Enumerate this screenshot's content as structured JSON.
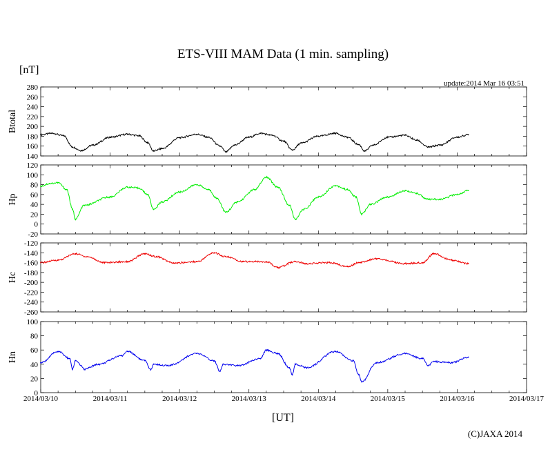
{
  "title": "ETS-VIII MAM Data (1 min. sampling)",
  "unit_label": "[nT]",
  "update_text": "update:2014 Mar 16 03:51",
  "xlabel": "[UT]",
  "copyright": "(C)JAXA 2014",
  "x_ticks": [
    "2014/03/10",
    "2014/03/11",
    "2014/03/12",
    "2014/03/13",
    "2014/03/14",
    "2014/03/15",
    "2014/03/16",
    "2014/03/17"
  ],
  "chart_data": [
    {
      "type": "line",
      "ylabel": "Btotal",
      "ylim": [
        140,
        280
      ],
      "y_ticks": [
        140,
        160,
        180,
        200,
        220,
        240,
        260,
        280
      ],
      "xlim": [
        "2014-03-10T00:00",
        "2014-03-17T00:00"
      ],
      "color": "#000000",
      "series": [
        {
          "x": [
            "2014-03-10T00:00",
            "2014-03-10T04:00",
            "2014-03-10T08:00",
            "2014-03-10T11:00",
            "2014-03-10T14:00",
            "2014-03-10T18:00",
            "2014-03-11T00:00",
            "2014-03-11T06:00",
            "2014-03-11T10:00",
            "2014-03-11T13:00",
            "2014-03-11T15:00",
            "2014-03-11T18:00",
            "2014-03-12T00:00",
            "2014-03-12T06:00",
            "2014-03-12T10:00",
            "2014-03-12T14:00",
            "2014-03-12T16:00",
            "2014-03-12T19:00",
            "2014-03-13T00:00",
            "2014-03-13T04:00",
            "2014-03-13T08:00",
            "2014-03-13T12:00",
            "2014-03-13T15:00",
            "2014-03-13T18:00",
            "2014-03-14T00:00",
            "2014-03-14T06:00",
            "2014-03-14T10:00",
            "2014-03-14T14:00",
            "2014-03-14T16:00",
            "2014-03-14T19:00",
            "2014-03-15T00:00",
            "2014-03-15T06:00",
            "2014-03-15T10:00",
            "2014-03-15T14:00",
            "2014-03-15T18:00",
            "2014-03-16T00:00",
            "2014-03-16T03:51"
          ],
          "values": [
            183,
            186,
            181,
            158,
            151,
            162,
            178,
            184,
            181,
            167,
            150,
            155,
            177,
            184,
            178,
            160,
            148,
            162,
            178,
            186,
            182,
            170,
            152,
            166,
            180,
            186,
            178,
            163,
            150,
            162,
            178,
            182,
            172,
            158,
            162,
            178,
            183
          ]
        }
      ]
    },
    {
      "type": "line",
      "ylabel": "Hp",
      "ylim": [
        -20,
        120
      ],
      "y_ticks": [
        -20,
        0,
        20,
        40,
        60,
        80,
        100,
        120
      ],
      "xlim": [
        "2014-03-10T00:00",
        "2014-03-17T00:00"
      ],
      "color": "#00ee00",
      "series": [
        {
          "x": [
            "2014-03-10T00:00",
            "2014-03-10T03:00",
            "2014-03-10T06:00",
            "2014-03-10T09:00",
            "2014-03-10T11:00",
            "2014-03-10T12:00",
            "2014-03-10T15:00",
            "2014-03-11T00:00",
            "2014-03-11T06:00",
            "2014-03-11T10:00",
            "2014-03-11T13:00",
            "2014-03-11T15:00",
            "2014-03-11T18:00",
            "2014-03-12T00:00",
            "2014-03-12T06:00",
            "2014-03-12T10:00",
            "2014-03-12T13:00",
            "2014-03-12T16:00",
            "2014-03-12T20:00",
            "2014-03-13T02:00",
            "2014-03-13T06:00",
            "2014-03-13T10:00",
            "2014-03-13T14:00",
            "2014-03-13T16:00",
            "2014-03-13T19:00",
            "2014-03-14T00:00",
            "2014-03-14T06:00",
            "2014-03-14T10:00",
            "2014-03-14T13:00",
            "2014-03-14T15:00",
            "2014-03-14T18:00",
            "2014-03-15T00:00",
            "2014-03-15T06:00",
            "2014-03-15T10:00",
            "2014-03-15T14:00",
            "2014-03-15T18:00",
            "2014-03-16T00:00",
            "2014-03-16T03:51"
          ],
          "values": [
            77,
            82,
            84,
            70,
            30,
            10,
            38,
            55,
            75,
            73,
            60,
            30,
            45,
            65,
            80,
            70,
            52,
            24,
            45,
            70,
            95,
            75,
            38,
            10,
            30,
            55,
            78,
            70,
            55,
            20,
            40,
            55,
            68,
            62,
            50,
            50,
            60,
            68
          ]
        }
      ]
    },
    {
      "type": "line",
      "ylabel": "Hc",
      "ylim": [
        -260,
        -120
      ],
      "y_ticks": [
        -260,
        -240,
        -220,
        -200,
        -180,
        -160,
        -140,
        -120
      ],
      "xlim": [
        "2014-03-10T00:00",
        "2014-03-17T00:00"
      ],
      "color": "#ee0000",
      "series": [
        {
          "x": [
            "2014-03-10T00:00",
            "2014-03-10T06:00",
            "2014-03-10T12:00",
            "2014-03-10T16:00",
            "2014-03-10T22:00",
            "2014-03-11T06:00",
            "2014-03-11T12:00",
            "2014-03-11T16:00",
            "2014-03-11T22:00",
            "2014-03-12T06:00",
            "2014-03-12T12:00",
            "2014-03-12T16:00",
            "2014-03-12T22:00",
            "2014-03-13T06:00",
            "2014-03-13T10:00",
            "2014-03-13T16:00",
            "2014-03-13T20:00",
            "2014-03-14T04:00",
            "2014-03-14T10:00",
            "2014-03-14T14:00",
            "2014-03-14T20:00",
            "2014-03-15T06:00",
            "2014-03-15T12:00",
            "2014-03-15T16:00",
            "2014-03-15T22:00",
            "2014-03-16T03:51"
          ],
          "values": [
            -160,
            -155,
            -142,
            -148,
            -160,
            -158,
            -142,
            -148,
            -161,
            -158,
            -140,
            -148,
            -158,
            -158,
            -170,
            -158,
            -162,
            -160,
            -168,
            -160,
            -152,
            -162,
            -160,
            -142,
            -155,
            -162
          ]
        }
      ]
    },
    {
      "type": "line",
      "ylabel": "Hn",
      "ylim": [
        0,
        100
      ],
      "y_ticks": [
        0,
        20,
        40,
        60,
        80,
        100
      ],
      "xlim": [
        "2014-03-10T00:00",
        "2014-03-17T00:00"
      ],
      "color": "#0000ee",
      "series": [
        {
          "x": [
            "2014-03-10T00:00",
            "2014-03-10T06:00",
            "2014-03-10T10:00",
            "2014-03-10T11:00",
            "2014-03-10T12:00",
            "2014-03-10T14:00",
            "2014-03-10T15:00",
            "2014-03-10T20:00",
            "2014-03-11T04:00",
            "2014-03-11T06:00",
            "2014-03-11T12:00",
            "2014-03-11T14:00",
            "2014-03-11T15:00",
            "2014-03-11T20:00",
            "2014-03-12T06:00",
            "2014-03-12T12:00",
            "2014-03-12T14:00",
            "2014-03-12T15:00",
            "2014-03-12T20:00",
            "2014-03-13T04:00",
            "2014-03-13T06:00",
            "2014-03-13T10:00",
            "2014-03-13T14:00",
            "2014-03-13T15:00",
            "2014-03-13T16:00",
            "2014-03-13T20:00",
            "2014-03-14T06:00",
            "2014-03-14T12:00",
            "2014-03-14T14:00",
            "2014-03-14T15:00",
            "2014-03-14T20:00",
            "2014-03-15T06:00",
            "2014-03-15T12:00",
            "2014-03-15T14:00",
            "2014-03-15T16:00",
            "2014-03-15T22:00",
            "2014-03-16T03:51"
          ],
          "values": [
            42,
            58,
            48,
            33,
            45,
            38,
            33,
            40,
            52,
            58,
            45,
            32,
            40,
            38,
            55,
            45,
            30,
            40,
            38,
            48,
            60,
            55,
            35,
            25,
            40,
            35,
            58,
            45,
            25,
            15,
            42,
            55,
            48,
            38,
            44,
            42,
            50
          ]
        }
      ]
    }
  ]
}
